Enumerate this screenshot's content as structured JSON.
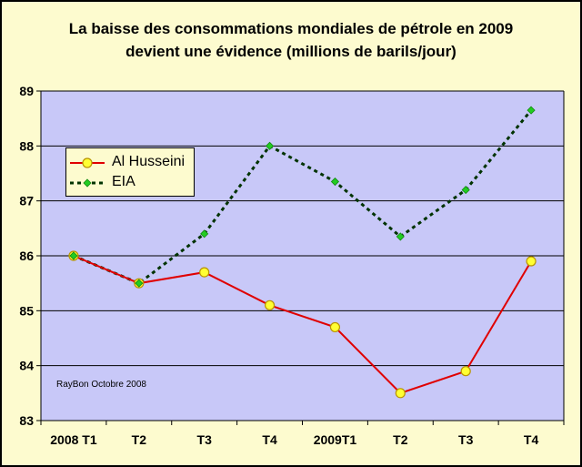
{
  "title_lines": [
    "La baisse des consommations mondiales de pétrole en 2009",
    "devient une évidence  (millions de barils/jour)"
  ],
  "credit": "RayBon Octobre 2008",
  "colors": {
    "background": "#fdfbcf",
    "plot_area": "#c8c8f8",
    "al_husseini_line": "#e00000",
    "al_husseini_marker": "#ffff33",
    "eia_line": "#003300",
    "eia_marker": "#22cc22"
  },
  "chart_data": {
    "type": "line",
    "title": "La baisse des consommations mondiales de pétrole en 2009 devient une évidence  (millions de barils/jour)",
    "categories": [
      "2008 T1",
      "T2",
      "T3",
      "T4",
      "2009T1",
      "T2",
      "T3",
      "T4"
    ],
    "y_ticks": [
      "83",
      "84",
      "85",
      "86",
      "87",
      "88",
      "89"
    ],
    "ylim": [
      83,
      89
    ],
    "grid": true,
    "legend_position": "upper-left",
    "series": [
      {
        "name": "Al Husseini",
        "style": "solid",
        "marker": "circle",
        "values": [
          86.0,
          85.5,
          85.7,
          85.1,
          84.7,
          83.5,
          83.9,
          85.9
        ]
      },
      {
        "name": "EIA",
        "style": "dotted",
        "marker": "diamond",
        "values": [
          86.0,
          85.5,
          86.4,
          88.0,
          87.35,
          86.35,
          87.2,
          88.65
        ]
      }
    ]
  }
}
